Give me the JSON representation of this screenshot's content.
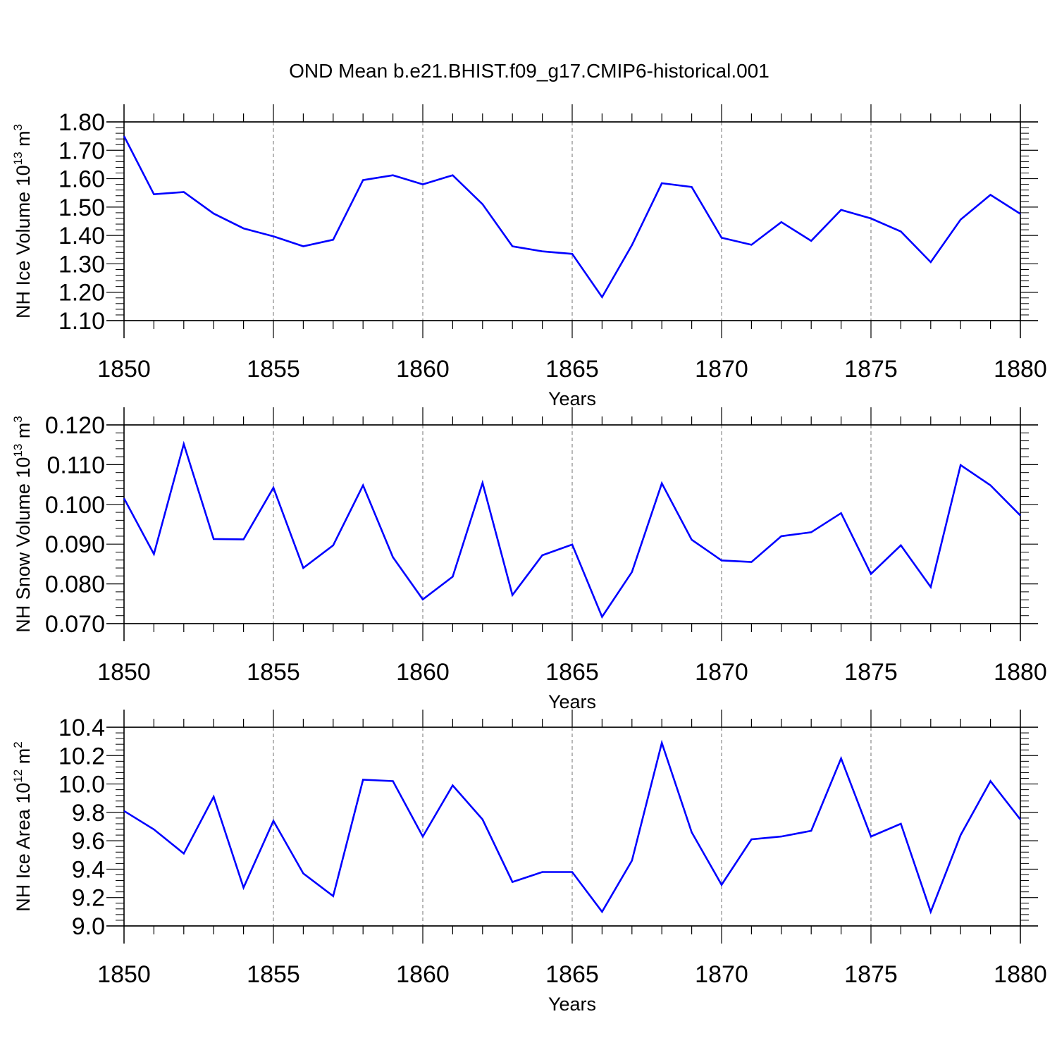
{
  "title": "OND Mean b.e21.BHIST.f09_g17.CMIP6-historical.001",
  "colors": {
    "line": "#0000ff",
    "axis": "#000000",
    "grid": "#888888"
  },
  "chart_data": [
    {
      "type": "line",
      "series_name": "NH Ice Volume",
      "ylabel": {
        "text": "NH Ice Volume 10",
        "exponent": "13",
        "unit": " m",
        "unit_exponent": "3"
      },
      "xlabel": "Years",
      "xlim": [
        1850,
        1880
      ],
      "ylim": [
        1.1,
        1.8
      ],
      "ytick_values": [
        1.1,
        1.2,
        1.3,
        1.4,
        1.5,
        1.6,
        1.7,
        1.8
      ],
      "ytick_labels": [
        "1.10",
        "1.20",
        "1.30",
        "1.40",
        "1.50",
        "1.60",
        "1.70",
        "1.80"
      ],
      "xtick_values": [
        1850,
        1855,
        1860,
        1865,
        1870,
        1875,
        1880
      ],
      "xtick_labels": [
        "1850",
        "1855",
        "1860",
        "1865",
        "1870",
        "1875",
        "1880"
      ],
      "grid_x": true,
      "x": [
        1850,
        1851,
        1852,
        1853,
        1854,
        1855,
        1856,
        1857,
        1858,
        1859,
        1860,
        1861,
        1862,
        1863,
        1864,
        1865,
        1866,
        1867,
        1868,
        1869,
        1870,
        1871,
        1872,
        1873,
        1874,
        1875,
        1876,
        1877,
        1878,
        1879,
        1880
      ],
      "values": [
        1.75,
        1.545,
        1.553,
        1.477,
        1.425,
        1.397,
        1.362,
        1.385,
        1.595,
        1.612,
        1.58,
        1.612,
        1.51,
        1.362,
        1.344,
        1.335,
        1.183,
        1.366,
        1.584,
        1.571,
        1.392,
        1.367,
        1.447,
        1.381,
        1.49,
        1.46,
        1.414,
        1.306,
        1.456,
        1.543,
        1.476
      ]
    },
    {
      "type": "line",
      "series_name": "NH Snow Volume",
      "ylabel": {
        "text": "NH Snow Volume 10",
        "exponent": "13",
        "unit": " m",
        "unit_exponent": "3"
      },
      "xlabel": "Years",
      "xlim": [
        1850,
        1880
      ],
      "ylim": [
        0.07,
        0.12
      ],
      "ytick_values": [
        0.07,
        0.08,
        0.09,
        0.1,
        0.11,
        0.12
      ],
      "ytick_labels": [
        "0.070",
        "0.080",
        "0.090",
        "0.100",
        "0.110",
        "0.120"
      ],
      "xtick_values": [
        1850,
        1855,
        1860,
        1865,
        1870,
        1875,
        1880
      ],
      "xtick_labels": [
        "1850",
        "1855",
        "1860",
        "1865",
        "1870",
        "1875",
        "1880"
      ],
      "grid_x": true,
      "x": [
        1850,
        1851,
        1852,
        1853,
        1854,
        1855,
        1856,
        1857,
        1858,
        1859,
        1860,
        1861,
        1862,
        1863,
        1864,
        1865,
        1866,
        1867,
        1868,
        1869,
        1870,
        1871,
        1872,
        1873,
        1874,
        1875,
        1876,
        1877,
        1878,
        1879,
        1880
      ],
      "values": [
        0.1015,
        0.0875,
        0.1152,
        0.0913,
        0.0912,
        0.1042,
        0.084,
        0.0897,
        0.1048,
        0.0867,
        0.0761,
        0.0818,
        0.1054,
        0.0772,
        0.0872,
        0.0899,
        0.0717,
        0.083,
        0.1053,
        0.0911,
        0.0859,
        0.0855,
        0.092,
        0.093,
        0.0978,
        0.0825,
        0.0897,
        0.0792,
        0.1099,
        0.1048,
        0.0972
      ]
    },
    {
      "type": "line",
      "series_name": "NH Ice Area",
      "ylabel": {
        "text": "NH Ice Area 10",
        "exponent": "12",
        "unit": " m",
        "unit_exponent": "2"
      },
      "xlabel": "Years",
      "xlim": [
        1850,
        1880
      ],
      "ylim": [
        9.0,
        10.4
      ],
      "ytick_values": [
        9.0,
        9.2,
        9.4,
        9.6,
        9.8,
        10.0,
        10.2,
        10.4
      ],
      "ytick_labels": [
        "9.0",
        "9.2",
        "9.4",
        "9.6",
        "9.8",
        "10.0",
        "10.2",
        "10.4"
      ],
      "xtick_values": [
        1850,
        1855,
        1860,
        1865,
        1870,
        1875,
        1880
      ],
      "xtick_labels": [
        "1850",
        "1855",
        "1860",
        "1865",
        "1870",
        "1875",
        "1880"
      ],
      "grid_x": true,
      "x": [
        1850,
        1851,
        1852,
        1853,
        1854,
        1855,
        1856,
        1857,
        1858,
        1859,
        1860,
        1861,
        1862,
        1863,
        1864,
        1865,
        1866,
        1867,
        1868,
        1869,
        1870,
        1871,
        1872,
        1873,
        1874,
        1875,
        1876,
        1877,
        1878,
        1879,
        1880
      ],
      "values": [
        9.81,
        9.68,
        9.51,
        9.91,
        9.27,
        9.74,
        9.37,
        9.21,
        10.03,
        10.02,
        9.63,
        9.99,
        9.75,
        9.31,
        9.38,
        9.38,
        9.1,
        9.46,
        10.29,
        9.66,
        9.29,
        9.61,
        9.63,
        9.67,
        10.18,
        9.63,
        9.72,
        9.1,
        9.64,
        10.02,
        9.75
      ]
    }
  ]
}
